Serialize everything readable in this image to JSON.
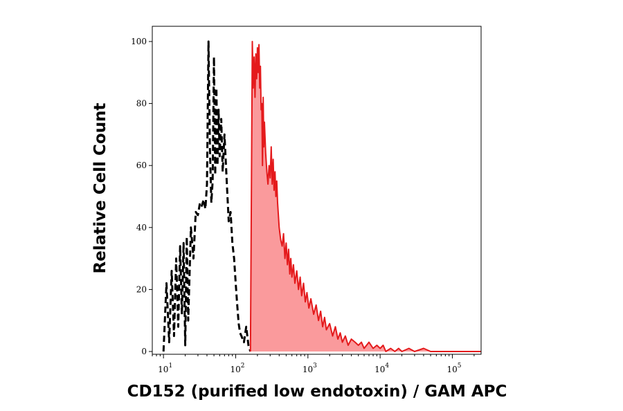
{
  "chart_data": {
    "type": "area",
    "title": "",
    "xlabel": "CD152 (purified low endotoxin) / GAM APC",
    "ylabel": "Relative Cell Count",
    "x_scale": "log",
    "xlim": [
      7,
      250000
    ],
    "ylim": [
      0,
      100
    ],
    "grid": false,
    "legend": "none",
    "x_ticks": [
      {
        "base": "10",
        "exp": "1",
        "value": 10
      },
      {
        "base": "10",
        "exp": "2",
        "value": 100
      },
      {
        "base": "10",
        "exp": "3",
        "value": 1000
      },
      {
        "base": "10",
        "exp": "4",
        "value": 10000
      },
      {
        "base": "10",
        "exp": "5",
        "value": 100000
      }
    ],
    "y_ticks": [
      "0",
      "20",
      "40",
      "60",
      "80",
      "100"
    ],
    "series": [
      {
        "style": "dashed",
        "color": "#000000",
        "fill": "none",
        "x": [
          10,
          11,
          12,
          13,
          14,
          15,
          16,
          17,
          18,
          19,
          20,
          21,
          22,
          24,
          26,
          28,
          30,
          32,
          34,
          36,
          38,
          40,
          42,
          44,
          46,
          48,
          50,
          52,
          54,
          56,
          58,
          60,
          63,
          66,
          70,
          75,
          80,
          85,
          90,
          95,
          100,
          105,
          110,
          115,
          120,
          130,
          140,
          150,
          160
        ],
        "y": [
          0,
          22,
          3,
          26,
          5,
          30,
          8,
          34,
          12,
          35,
          2,
          37,
          10,
          40,
          30,
          45,
          44,
          48,
          47,
          49,
          46,
          54,
          100,
          65,
          48,
          55,
          95,
          57,
          85,
          60,
          78,
          63,
          75,
          58,
          70,
          55,
          42,
          45,
          35,
          30,
          22,
          15,
          9,
          6,
          5,
          3,
          8,
          2,
          0
        ]
      },
      {
        "style": "solid",
        "color": "#e41a1c",
        "fill": "#fa9a9c",
        "x": [
          160,
          170,
          175,
          180,
          185,
          190,
          195,
          200,
          205,
          210,
          215,
          220,
          225,
          230,
          235,
          240,
          245,
          250,
          260,
          270,
          280,
          290,
          300,
          310,
          320,
          330,
          340,
          350,
          360,
          370,
          380,
          400,
          420,
          440,
          460,
          480,
          500,
          520,
          540,
          560,
          580,
          600,
          630,
          660,
          700,
          740,
          780,
          820,
          870,
          920,
          970,
          1030,
          1100,
          1200,
          1300,
          1400,
          1500,
          1600,
          1700,
          1800,
          2000,
          2200,
          2400,
          2600,
          2800,
          3000,
          3300,
          3600,
          4000,
          4500,
          5000,
          5500,
          6000,
          7000,
          8000,
          9000,
          10000,
          11000,
          12000,
          14000,
          16000,
          18000,
          20000,
          25000,
          30000,
          40000,
          50000,
          70000,
          100000,
          150000,
          250000
        ],
        "y": [
          0,
          100,
          85,
          95,
          82,
          96,
          88,
          98,
          90,
          99,
          85,
          92,
          78,
          80,
          60,
          82,
          66,
          74,
          64,
          58,
          54,
          60,
          56,
          66,
          54,
          62,
          52,
          58,
          50,
          55,
          48,
          40,
          36,
          34,
          38,
          30,
          35,
          28,
          33,
          25,
          30,
          24,
          28,
          22,
          26,
          20,
          24,
          18,
          22,
          16,
          19,
          14,
          17,
          12,
          15,
          10,
          13,
          8,
          11,
          7,
          9,
          5,
          8,
          4,
          6,
          3,
          5,
          2,
          4,
          3,
          2,
          3,
          1,
          3,
          1,
          2,
          1,
          2,
          0,
          1,
          0,
          1,
          0,
          1,
          0,
          1,
          0,
          0,
          0,
          0,
          0
        ]
      }
    ]
  }
}
